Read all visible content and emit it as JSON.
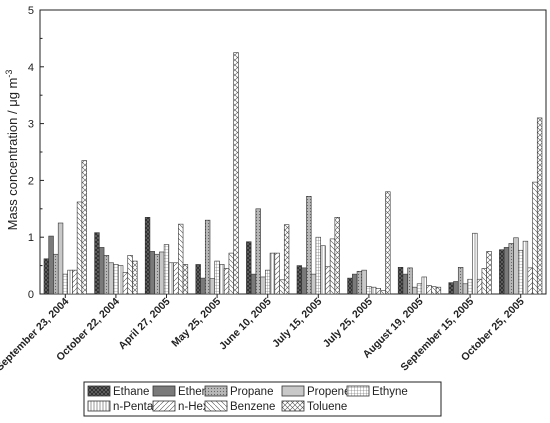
{
  "chart_data": {
    "type": "bar",
    "title": "",
    "xlabel": "",
    "ylabel": "Mass concentration / μg m",
    "ylabel_superscript": "-3",
    "ylim": [
      0,
      5
    ],
    "yticks": [
      "0",
      "1",
      "2",
      "3",
      "4",
      "5"
    ],
    "categories": [
      "September 23, 2004",
      "October 22, 2004",
      "April 27, 2005",
      "May 25, 2005",
      "June 10, 2005",
      "July 15, 2005",
      "July 25, 2005",
      "August 19, 2005",
      "September 15, 2005",
      "October 25, 2005"
    ],
    "legend_position": "bottom",
    "series": [
      {
        "name": "Ethane",
        "fill": "#3a3a3a",
        "pattern": "crosshatch-dark",
        "values": [
          0.62,
          1.08,
          1.35,
          0.52,
          0.92,
          0.5,
          0.28,
          0.47,
          0.2,
          0.78
        ]
      },
      {
        "name": "Ethene",
        "fill": "#7a7a7a",
        "pattern": "solid",
        "values": [
          1.02,
          0.82,
          0.75,
          0.28,
          0.35,
          0.46,
          0.35,
          0.35,
          0.22,
          0.82
        ]
      },
      {
        "name": "Propane",
        "fill": "#a9a9a9",
        "pattern": "dots",
        "values": [
          0.7,
          0.68,
          0.7,
          1.3,
          1.5,
          1.72,
          0.4,
          0.46,
          0.47,
          0.89
        ]
      },
      {
        "name": "Propene",
        "fill": "#c8c8c8",
        "pattern": "solid",
        "values": [
          1.25,
          0.55,
          0.74,
          0.27,
          0.3,
          0.35,
          0.42,
          0.12,
          0.18,
          0.99
        ]
      },
      {
        "name": "Ethyne",
        "fill": "#ffffff",
        "pattern": "grid",
        "values": [
          0.35,
          0.52,
          0.87,
          0.58,
          0.42,
          1.0,
          0.13,
          0.18,
          0.26,
          0.77
        ]
      },
      {
        "name": "n-Pentane",
        "fill": "#ffffff",
        "pattern": "vertical",
        "values": [
          0.42,
          0.5,
          0.55,
          0.52,
          0.72,
          0.85,
          0.12,
          0.3,
          1.07,
          0.93
        ]
      },
      {
        "name": "n-Hexane",
        "fill": "#ffffff",
        "pattern": "forward-diagonal",
        "values": [
          0.42,
          0.38,
          0.55,
          0.45,
          0.72,
          0.48,
          0.1,
          0.15,
          0.26,
          0.46
        ]
      },
      {
        "name": "Benzene",
        "fill": "#ffffff",
        "pattern": "back-diagonal",
        "values": [
          1.62,
          0.68,
          1.23,
          0.72,
          0.25,
          0.97,
          0.06,
          0.13,
          0.45,
          1.97
        ]
      },
      {
        "name": "Toluene",
        "fill": "#ffffff",
        "pattern": "diamond",
        "values": [
          2.35,
          0.58,
          0.52,
          4.25,
          1.22,
          1.35,
          1.8,
          0.12,
          0.75,
          3.1
        ]
      }
    ],
    "extra_bars_note": ""
  }
}
